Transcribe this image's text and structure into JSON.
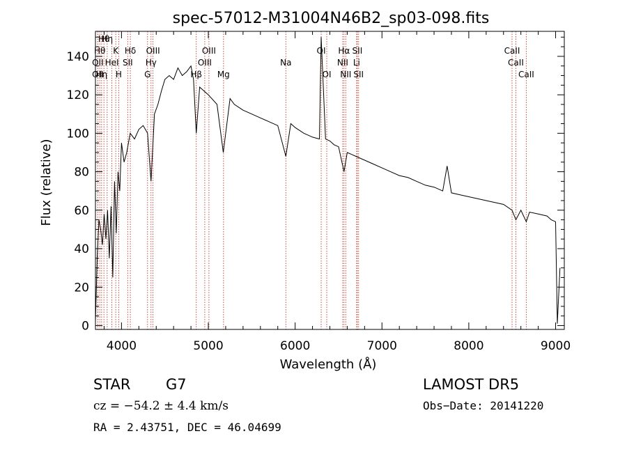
{
  "chart_data": {
    "type": "line",
    "title": "spec-57012-M31004N46B2_sp03-098.fits",
    "xlabel": "Wavelength (Å)",
    "ylabel": "Flux (relative)",
    "xlim": [
      3700,
      9100
    ],
    "ylim": [
      -2,
      153
    ],
    "xticks": [
      "4000",
      "5000",
      "6000",
      "7000",
      "8000",
      "9000"
    ],
    "yticks": [
      "0",
      "20",
      "40",
      "60",
      "80",
      "100",
      "120",
      "140"
    ],
    "grid": false,
    "series": [
      {
        "x": [
          3700,
          3720,
          3740,
          3760,
          3780,
          3800,
          3820,
          3840,
          3860,
          3880,
          3900,
          3920,
          3940,
          3960,
          3980,
          4000,
          4030,
          4060,
          4100,
          4150,
          4200,
          4250,
          4300,
          4340,
          4380,
          4420,
          4460,
          4500,
          4550,
          4600,
          4650,
          4700,
          4750,
          4800,
          4830,
          4861,
          4900,
          4950,
          5000,
          5100,
          5172,
          5250,
          5300,
          5400,
          5500,
          5600,
          5700,
          5800,
          5893,
          5950,
          6000,
          6100,
          6200,
          6280,
          6300,
          6350,
          6400,
          6450,
          6500,
          6563,
          6600,
          6650,
          6700,
          6800,
          6900,
          7000,
          7100,
          7200,
          7300,
          7400,
          7500,
          7600,
          7700,
          7750,
          7800,
          7900,
          8000,
          8100,
          8200,
          8300,
          8400,
          8498,
          8542,
          8600,
          8662,
          8700,
          8800,
          8900,
          8950,
          9000,
          9020,
          9050
        ],
        "y": [
          2,
          35,
          55,
          50,
          42,
          58,
          45,
          60,
          35,
          62,
          25,
          75,
          48,
          80,
          70,
          95,
          85,
          90,
          100,
          97,
          102,
          104,
          100,
          75,
          110,
          115,
          122,
          128,
          130,
          128,
          134,
          130,
          132,
          135,
          128,
          100,
          124,
          122,
          120,
          115,
          90,
          118,
          115,
          112,
          110,
          108,
          106,
          104,
          88,
          105,
          103,
          100,
          98,
          97,
          150,
          97,
          96,
          94,
          93,
          80,
          90,
          89,
          88,
          86,
          84,
          82,
          80,
          78,
          77,
          75,
          73,
          72,
          70,
          83,
          69,
          68,
          67,
          66,
          65,
          64,
          63,
          60,
          55,
          60,
          54,
          59,
          58,
          57,
          55,
          54,
          1,
          30
        ]
      }
    ],
    "lines": [
      {
        "wl": 3750,
        "label": "Hθ",
        "row": 1
      },
      {
        "wl": 3771,
        "label": "Hη",
        "row": 3
      },
      {
        "wl": 3727,
        "label": "OII",
        "row": 2
      },
      {
        "wl": 3727,
        "label": "OII",
        "row": 3
      },
      {
        "wl": 3798,
        "label": "Hθ",
        "row": 0
      },
      {
        "wl": 3835,
        "label": "Hη",
        "row": 0
      },
      {
        "wl": 3889,
        "label": "HeI",
        "row": 2
      },
      {
        "wl": 3934,
        "label": "K",
        "row": 1
      },
      {
        "wl": 3968,
        "label": "H",
        "row": 3
      },
      {
        "wl": 4072,
        "label": "SII",
        "row": 2
      },
      {
        "wl": 4102,
        "label": "Hδ",
        "row": 1
      },
      {
        "wl": 4300,
        "label": "G",
        "row": 3
      },
      {
        "wl": 4340,
        "label": "Hγ",
        "row": 2
      },
      {
        "wl": 4363,
        "label": "OIII",
        "row": 1
      },
      {
        "wl": 4861,
        "label": "Hβ",
        "row": 3
      },
      {
        "wl": 4959,
        "label": "OIII",
        "row": 2
      },
      {
        "wl": 5007,
        "label": "OIII",
        "row": 1
      },
      {
        "wl": 5175,
        "label": "Mg",
        "row": 3
      },
      {
        "wl": 5893,
        "label": "Na",
        "row": 2
      },
      {
        "wl": 6300,
        "label": "OI",
        "row": 1
      },
      {
        "wl": 6364,
        "label": "OI",
        "row": 3
      },
      {
        "wl": 6548,
        "label": "NII",
        "row": 2
      },
      {
        "wl": 6563,
        "label": "Hα",
        "row": 1
      },
      {
        "wl": 6583,
        "label": "NII",
        "row": 3
      },
      {
        "wl": 6708,
        "label": "Li",
        "row": 2
      },
      {
        "wl": 6716,
        "label": "SII",
        "row": 1
      },
      {
        "wl": 6731,
        "label": "SII",
        "row": 3
      },
      {
        "wl": 8498,
        "label": "CaII",
        "row": 1
      },
      {
        "wl": 8542,
        "label": "CaII",
        "row": 2
      },
      {
        "wl": 8662,
        "label": "CaII",
        "row": 3
      }
    ]
  },
  "info": {
    "object_class": "STAR",
    "subclass": "G7",
    "cz": "cz = −54.2 ± 4.4 km/s",
    "radec": "RA =   2.43751, DEC =  46.04699",
    "survey": "LAMOST  DR5",
    "obs_date": "Obs−Date: 20141220"
  }
}
